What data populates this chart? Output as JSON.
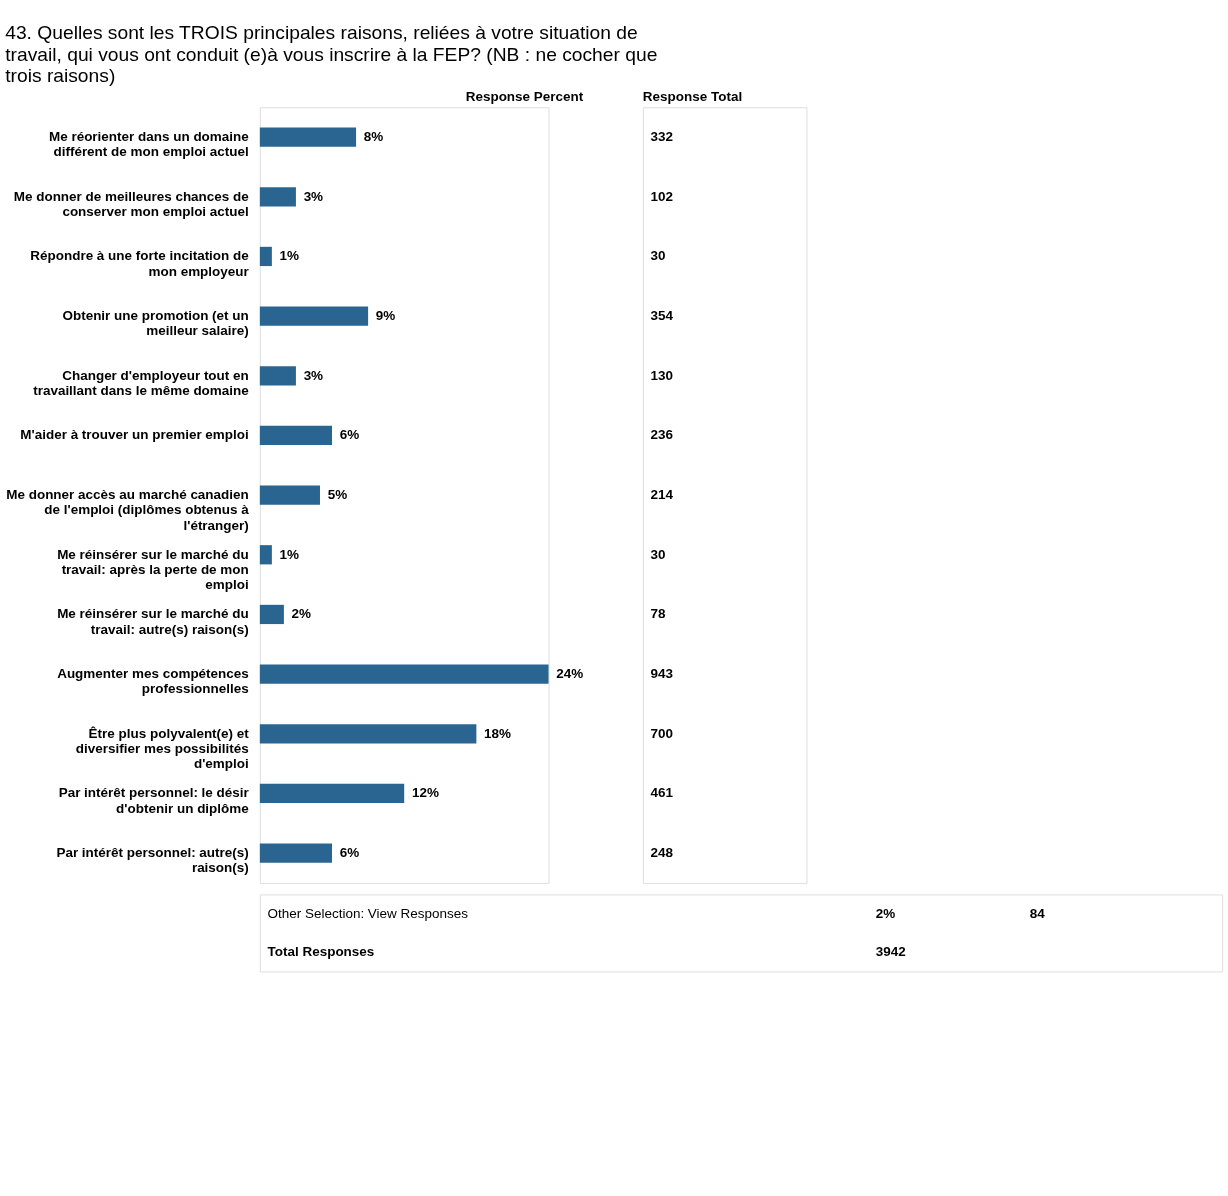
{
  "chart_data": {
    "type": "bar",
    "orientation": "horizontal",
    "title": "43. Quelles sont les TROIS principales raisons, reliées à votre situation de travail, qui vous ont conduit (e)à vous inscrire à la FEP? (NB : ne cocher que trois raisons)",
    "categories": [
      "Me réorienter dans un domaine différent de mon emploi actuel",
      "Me donner de meilleures chances de conserver mon emploi actuel",
      "Répondre à une forte incitation de mon employeur",
      "Obtenir une promotion (et un meilleur salaire)",
      "Changer d'employeur tout en travaillant dans le même domaine",
      "M'aider à trouver un premier emploi",
      "Me donner accès au marché canadien de l'emploi (diplômes obtenus à l'étranger)",
      "Me réinsérer sur le marché du travail: après la perte de mon emploi",
      "Me réinsérer sur le marché du travail: autre(s) raison(s)",
      "Augmenter mes compétences professionnelles",
      "Être plus polyvalent(e) et diversifier mes possibilités d'emploi",
      "Par intérêt personnel: le désir d'obtenir un diplôme",
      "Par intérêt personnel: autre(s) raison(s)"
    ],
    "values": [
      8,
      3,
      1,
      9,
      3,
      6,
      5,
      1,
      2,
      24,
      18,
      12,
      6
    ],
    "value_labels": [
      "8%",
      "3%",
      "1%",
      "9%",
      "3%",
      "6%",
      "5%",
      "1%",
      "2%",
      "24%",
      "18%",
      "12%",
      "6%"
    ],
    "color": "#2a6592",
    "tick_labels": "y",
    "grid": false,
    "annotations": [
      "Response Percent",
      "Response Total",
      "332",
      "102",
      "30",
      "354",
      "130",
      "236",
      "214",
      "30",
      "78",
      "943",
      "700",
      "461",
      "248",
      "Other Selection: View Responses",
      "2%",
      "84",
      "Total Responses",
      "3942"
    ]
  }
}
